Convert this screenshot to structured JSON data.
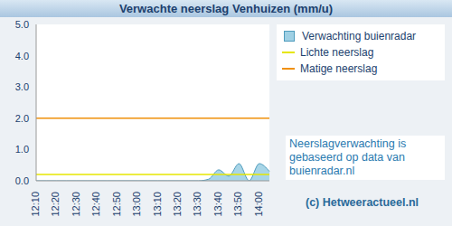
{
  "chart_data": {
    "type": "area",
    "title": "Verwachte neerslag Venhuizen (mm/u)",
    "categories": [
      "12:10",
      null,
      "12:20",
      null,
      "12:30",
      null,
      "12:40",
      null,
      "12:50",
      null,
      "13:00",
      null,
      "13:10",
      null,
      "13:20",
      null,
      "13:30",
      null,
      "13:40",
      null,
      "13:50",
      null,
      "14:00",
      null
    ],
    "series": [
      {
        "name": "Verwachting buienradar",
        "color": "#9fd0e4",
        "values": [
          0,
          0,
          0,
          0,
          0,
          0,
          0,
          0,
          0,
          0,
          0,
          0,
          0,
          0,
          0,
          0,
          0,
          0.05,
          0.35,
          0.15,
          0.55,
          0,
          0.55,
          0.3
        ]
      },
      {
        "name": "Lichte neerslag",
        "type": "line",
        "color": "#e6e600",
        "values": [
          0.2,
          0.2,
          0.2,
          0.2,
          0.2,
          0.2,
          0.2,
          0.2,
          0.2,
          0.2,
          0.2,
          0.2,
          0.2,
          0.2,
          0.2,
          0.2,
          0.2,
          0.2,
          0.2,
          0.2,
          0.2,
          0.2,
          0.2,
          0.2
        ]
      },
      {
        "name": "Matige neerslag",
        "type": "line",
        "color": "#f0900a",
        "values": [
          2,
          2,
          2,
          2,
          2,
          2,
          2,
          2,
          2,
          2,
          2,
          2,
          2,
          2,
          2,
          2,
          2,
          2,
          2,
          2,
          2,
          2,
          2,
          2
        ]
      }
    ],
    "ylim": [
      0,
      5
    ],
    "yticks": [
      {
        "value": 0,
        "label": "0.0"
      },
      {
        "value": 1,
        "label": "1.0"
      },
      {
        "value": 2,
        "label": "2.0"
      },
      {
        "value": 3,
        "label": "3.0"
      },
      {
        "value": 4,
        "label": "4.0"
      },
      {
        "value": 5,
        "label": "5.0"
      }
    ],
    "grid": false,
    "annotations": [
      "Neerslagverwachting is gebaseerd op data van buienradar.nl",
      "(c) Hetweeractueel.nl"
    ]
  }
}
